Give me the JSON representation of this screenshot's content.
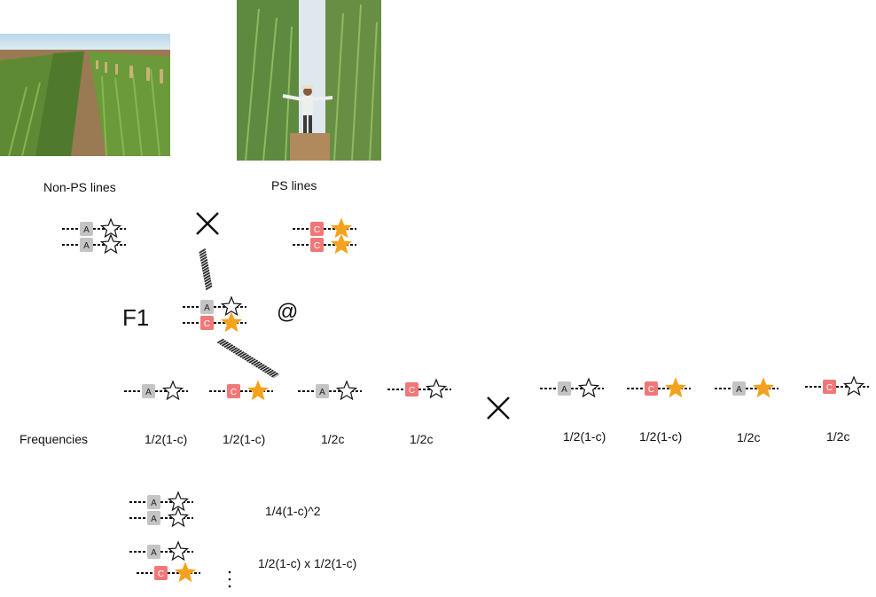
{
  "photos": {
    "non_ps_label": "Non-PS lines",
    "ps_label": "PS lines"
  },
  "labels": {
    "f1": "F1",
    "at_symbol": "@",
    "frequencies": "Frequencies"
  },
  "gamete_frequencies_left": [
    "1/2(1-c)",
    "1/2(1-c)",
    "1/2c",
    "1/2c"
  ],
  "gamete_frequencies_right": [
    "1/2(1-c)",
    "1/2(1-c)",
    "1/2c",
    "1/2c"
  ],
  "offspring_frequencies": [
    "1/4(1-c)^2",
    "1/2(1-c) x 1/2(1-c)"
  ],
  "alleles": {
    "a": "A",
    "c": "C"
  },
  "colors": {
    "gray_block": "#c4c4c4",
    "red_block": "#f07878",
    "star_filled": "#f4a21d",
    "soil": "#a8794f",
    "sky": "#cfe3f0"
  }
}
